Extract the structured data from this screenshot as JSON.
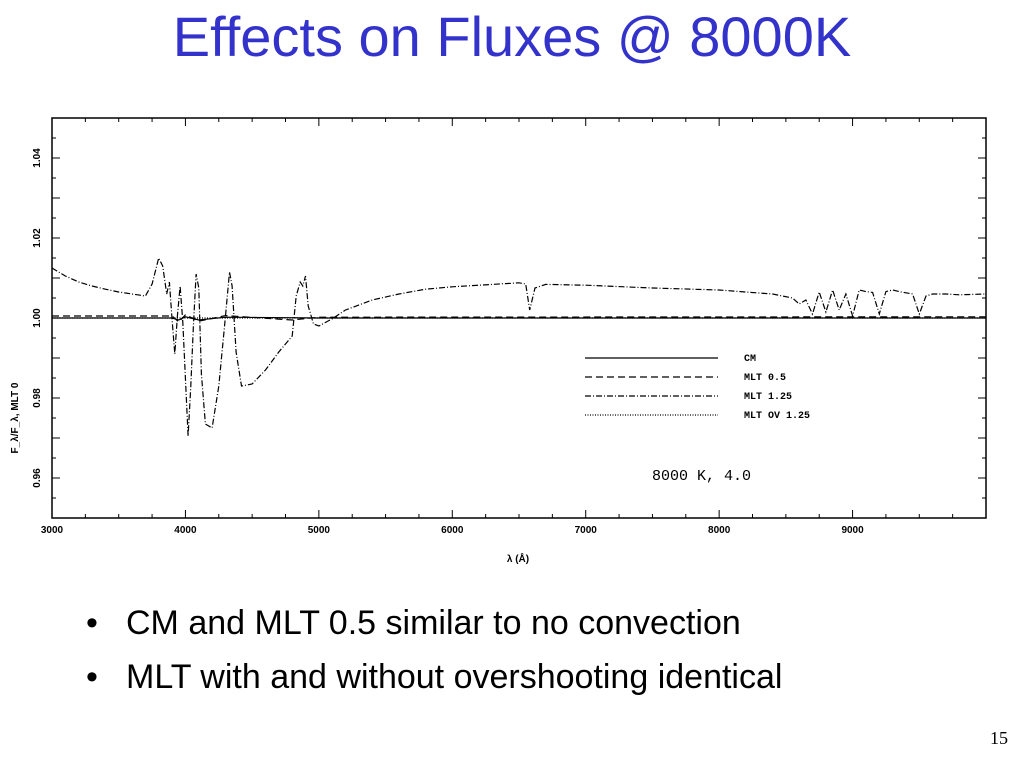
{
  "slide": {
    "title": "Effects on Fluxes @ 8000K",
    "bullets": [
      "CM and MLT 0.5 similar to no convection",
      "MLT with and without overshooting identical"
    ],
    "page_number": "15"
  },
  "chart_data": {
    "type": "line",
    "title": "",
    "xlabel": "λ (Å)",
    "ylabel": "F_λ/F_λ, MLT 0",
    "xlim": [
      3000,
      10000
    ],
    "ylim": [
      0.95,
      1.05
    ],
    "xticks": [
      3000,
      4000,
      5000,
      6000,
      7000,
      8000,
      9000
    ],
    "xtick_labels": [
      "3000",
      "4000",
      "5000",
      "6000",
      "7000",
      "8000",
      "9000"
    ],
    "yticks": [
      0.96,
      0.98,
      1.0,
      1.02,
      1.04
    ],
    "ytick_labels": [
      "0.96",
      "0.98",
      "1.00",
      "1.02",
      "1.04"
    ],
    "annotation": "8000 K, 4.0",
    "legend_position": "center-right",
    "series": [
      {
        "name": "CM",
        "dash": "solid",
        "x": [
          3000,
          3900,
          3950,
          4000,
          4100,
          4300,
          5000,
          10000
        ],
        "y": [
          1.0,
          1.0,
          0.9995,
          1.0003,
          0.9995,
          1.0002,
          1.0,
          1.0
        ]
      },
      {
        "name": "MLT 0.5",
        "dash": "dashed",
        "x": [
          3000,
          3900,
          3950,
          4000,
          4100,
          4300,
          4800,
          5000,
          10000
        ],
        "y": [
          1.0005,
          1.0005,
          0.999,
          1.0008,
          0.9992,
          1.0006,
          0.9995,
          1.0002,
          1.0003
        ]
      },
      {
        "name": "MLT 1.25",
        "dash": "dashdot",
        "x": [
          3000,
          3100,
          3200,
          3300,
          3400,
          3500,
          3600,
          3700,
          3750,
          3800,
          3830,
          3860,
          3880,
          3900,
          3920,
          3940,
          3960,
          3980,
          4000,
          4020,
          4040,
          4060,
          4080,
          4100,
          4120,
          4150,
          4200,
          4250,
          4300,
          4330,
          4350,
          4380,
          4420,
          4500,
          4600,
          4700,
          4800,
          4830,
          4860,
          4880,
          4900,
          4920,
          4960,
          5000,
          5100,
          5200,
          5400,
          5600,
          5800,
          6000,
          6200,
          6400,
          6500,
          6550,
          6580,
          6620,
          6700,
          7000,
          7500,
          8000,
          8200,
          8400,
          8550,
          8600,
          8650,
          8700,
          8750,
          8800,
          8850,
          8900,
          8950,
          9000,
          9050,
          9100,
          9150,
          9200,
          9250,
          9300,
          9350,
          9400,
          9450,
          9500,
          9550,
          9600,
          9700,
          9800,
          10000
        ],
        "y": [
          1.0125,
          1.0105,
          1.009,
          1.008,
          1.0072,
          1.0065,
          1.006,
          1.0055,
          1.0085,
          1.015,
          1.013,
          1.006,
          1.009,
          0.9995,
          0.991,
          1.0005,
          1.008,
          0.999,
          0.985,
          0.9705,
          0.983,
          0.998,
          1.011,
          1.0075,
          0.986,
          0.9735,
          0.9725,
          0.983,
          1.0005,
          1.0115,
          1.008,
          0.9915,
          0.983,
          0.9835,
          0.987,
          0.9915,
          0.9955,
          1.0055,
          1.009,
          1.008,
          1.0105,
          1.003,
          0.9985,
          0.998,
          0.9998,
          1.002,
          1.0045,
          1.006,
          1.0072,
          1.0078,
          1.0082,
          1.0086,
          1.0088,
          1.0085,
          1.002,
          1.0075,
          1.0084,
          1.0082,
          1.0075,
          1.007,
          1.0065,
          1.006,
          1.005,
          1.0035,
          1.0045,
          1.001,
          1.0065,
          1.0015,
          1.007,
          1.002,
          1.006,
          1.0005,
          1.007,
          1.0066,
          1.0064,
          1.001,
          1.0066,
          1.007,
          1.0066,
          1.0063,
          1.006,
          1.001,
          1.0055,
          1.006,
          1.006,
          1.0058,
          1.006
        ]
      },
      {
        "name": "MLT OV 1.25",
        "dash": "dotted",
        "x": [
          3000,
          10000
        ],
        "y": [
          1.0,
          1.0
        ]
      }
    ]
  }
}
